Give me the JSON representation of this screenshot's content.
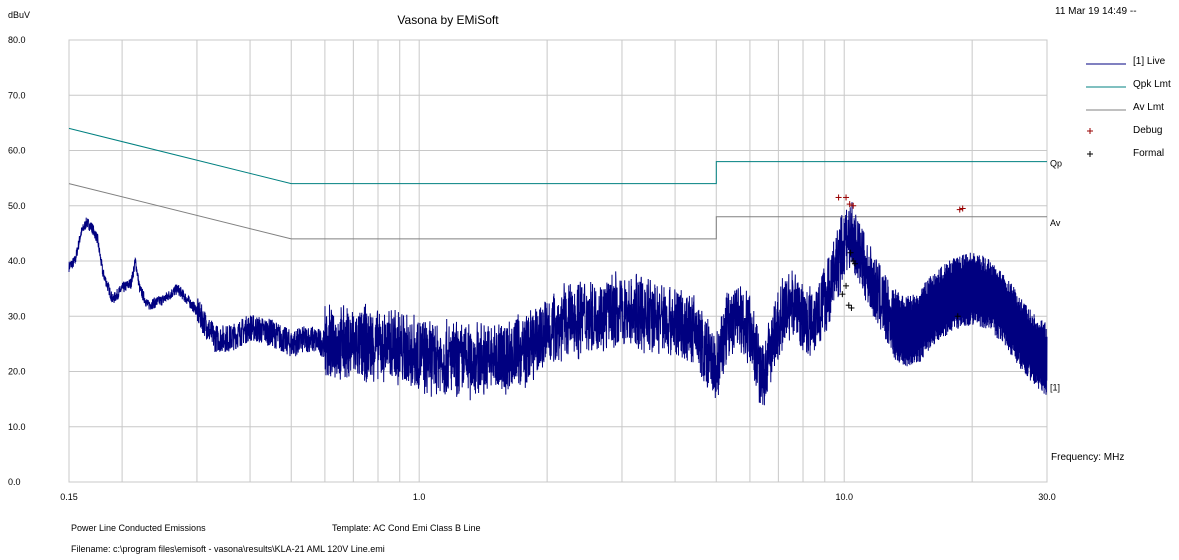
{
  "chart_data": {
    "type": "line",
    "title": "Vasona by EMiSoft",
    "timestamp": "11 Mar 19 14:49 --",
    "ylabel": "dBuV",
    "xlabel": "Frequency: MHz",
    "x_scale": "log",
    "xlim": [
      0.15,
      30.0
    ],
    "ylim": [
      0,
      80
    ],
    "grid": true,
    "legend_position": "right",
    "y_ticks": [
      "80.0",
      "70.0",
      "60.0",
      "50.0",
      "40.0",
      "30.0",
      "20.0",
      "10.0",
      "0.0"
    ],
    "x_tick_labels": [
      {
        "value": 0.15,
        "label": "0.15"
      },
      {
        "value": 1.0,
        "label": "1.0"
      },
      {
        "value": 10.0,
        "label": "10.0"
      },
      {
        "value": 30.0,
        "label": "30.0"
      }
    ],
    "series": [
      {
        "name": "[1] Live",
        "color": "#000080",
        "end_label": "[1]",
        "points": [
          [
            0.15,
            39
          ],
          [
            0.155,
            40
          ],
          [
            0.16,
            45
          ],
          [
            0.165,
            47
          ],
          [
            0.17,
            46
          ],
          [
            0.175,
            44
          ],
          [
            0.18,
            38
          ],
          [
            0.19,
            33
          ],
          [
            0.2,
            35
          ],
          [
            0.21,
            36
          ],
          [
            0.215,
            40
          ],
          [
            0.22,
            35
          ],
          [
            0.23,
            32
          ],
          [
            0.25,
            33
          ],
          [
            0.27,
            35
          ],
          [
            0.3,
            31
          ],
          [
            0.33,
            26
          ],
          [
            0.36,
            26
          ],
          [
            0.4,
            28
          ],
          [
            0.45,
            27
          ],
          [
            0.5,
            25
          ],
          [
            0.55,
            26
          ],
          [
            0.6,
            25
          ],
          [
            0.7,
            25
          ],
          [
            0.8,
            25
          ],
          [
            0.9,
            24
          ],
          [
            1.0,
            23
          ],
          [
            1.2,
            22
          ],
          [
            1.4,
            22
          ],
          [
            1.6,
            23
          ],
          [
            1.8,
            24
          ],
          [
            2.0,
            27
          ],
          [
            2.2,
            29
          ],
          [
            2.5,
            30
          ],
          [
            3.0,
            31
          ],
          [
            3.5,
            30
          ],
          [
            4.0,
            29
          ],
          [
            4.5,
            27
          ],
          [
            4.8,
            22
          ],
          [
            5.0,
            20
          ],
          [
            5.3,
            28
          ],
          [
            5.6,
            30
          ],
          [
            6.0,
            28
          ],
          [
            6.3,
            21
          ],
          [
            6.5,
            19
          ],
          [
            6.8,
            26
          ],
          [
            7.2,
            31
          ],
          [
            7.6,
            33
          ],
          [
            8.0,
            29
          ],
          [
            8.5,
            30
          ],
          [
            9.0,
            33
          ],
          [
            9.5,
            38
          ],
          [
            10.0,
            43
          ],
          [
            10.4,
            45
          ],
          [
            11.0,
            40
          ],
          [
            12.0,
            34
          ],
          [
            13.0,
            29
          ],
          [
            14.0,
            27
          ],
          [
            15.0,
            28
          ],
          [
            16.0,
            31
          ],
          [
            18.0,
            34
          ],
          [
            20.0,
            35
          ],
          [
            22.0,
            34
          ],
          [
            24.0,
            31
          ],
          [
            26.0,
            27
          ],
          [
            28.0,
            24
          ],
          [
            30.0,
            22
          ]
        ]
      },
      {
        "name": "Qpk Lmt",
        "color": "#008080",
        "end_label": "Qp",
        "points": [
          [
            0.15,
            64.0
          ],
          [
            0.5,
            54.0
          ],
          [
            0.5,
            54.0
          ],
          [
            5.0,
            54.0
          ],
          [
            5.0,
            58.0
          ],
          [
            30.0,
            58.0
          ]
        ]
      },
      {
        "name": "Av Lmt",
        "color": "#808080",
        "end_label": "Av",
        "points": [
          [
            0.15,
            54.0
          ],
          [
            0.5,
            44.0
          ],
          [
            0.5,
            44.0
          ],
          [
            5.0,
            44.0
          ],
          [
            5.0,
            48.0
          ],
          [
            30.0,
            48.0
          ]
        ]
      }
    ],
    "markers": [
      {
        "name": "Debug",
        "color": "#990000",
        "points": [
          [
            9.7,
            51.5
          ],
          [
            10.1,
            51.5
          ],
          [
            10.3,
            50.3
          ],
          [
            10.5,
            50.0
          ],
          [
            18.7,
            49.3
          ],
          [
            19.0,
            49.5
          ]
        ]
      },
      {
        "name": "Formal",
        "color": "#000000",
        "points": [
          [
            9.9,
            34
          ],
          [
            10.1,
            35.5
          ],
          [
            10.25,
            32
          ],
          [
            10.4,
            31.5
          ],
          [
            10.6,
            39.5
          ],
          [
            10.35,
            41.5
          ],
          [
            10.5,
            40
          ],
          [
            18.5,
            30
          ]
        ]
      }
    ]
  },
  "footer": {
    "line1_left": "Power Line Conducted Emissions",
    "line1_right": "Template: AC Cond Emi Class B Line",
    "line2": "Filename: c:\\program files\\emisoft - vasona\\results\\KLA-21 AML 120V Line.emi"
  }
}
